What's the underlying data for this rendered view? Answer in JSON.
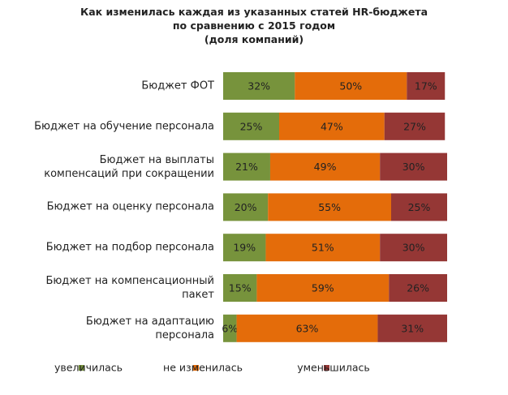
{
  "chart_data": {
    "type": "stacked-bar-horizontal",
    "title": "Как изменилась каждая из указанных статей HR-бюджета\nпо сравнению с 2015 годом\n(доля компаний)",
    "categories": [
      "Бюджет ФОТ",
      "Бюджет на обучение персонала",
      "Бюджет на выплаты\nкомпенсаций при сокращении",
      "Бюджет на оценку персонала",
      "Бюджет на подбор персонала",
      "Бюджет на компенсационный\nпакет",
      "Бюджет на адаптацию\nперсонала"
    ],
    "series": [
      {
        "name": "увеличилась",
        "color": "#77933c",
        "values": [
          32,
          25,
          21,
          20,
          19,
          15,
          6
        ],
        "value_labels": [
          "32%",
          "25%",
          "21%",
          "20%",
          "19%",
          "15%",
          "6%"
        ]
      },
      {
        "name": "не изменилась",
        "color": "#e46c0a",
        "values": [
          50,
          47,
          49,
          55,
          51,
          59,
          63
        ],
        "value_labels": [
          "50%",
          "47%",
          "49%",
          "55%",
          "51%",
          "59%",
          "63%"
        ]
      },
      {
        "name": "уменьшилась",
        "color": "#953735",
        "values": [
          17,
          27,
          30,
          25,
          30,
          26,
          31
        ],
        "value_labels": [
          "17%",
          "27%",
          "30%",
          "25%",
          "30%",
          "26%",
          "31%"
        ]
      }
    ],
    "legend": "bottom"
  }
}
